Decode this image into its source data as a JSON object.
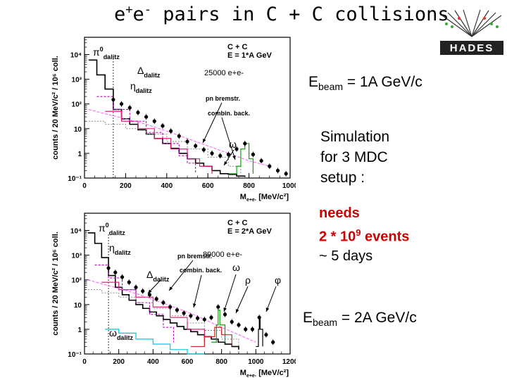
{
  "title": {
    "part1": "e",
    "sup1": "+",
    "part2": "e",
    "sup2": "-",
    "part3": " pairs in C + C collisions"
  },
  "logo": {
    "text": "HADES"
  },
  "right_panel": {
    "ebeam1": {
      "prefix": "E",
      "sub": "beam",
      "value": " = 1A GeV/c"
    },
    "simulation": [
      "Simulation",
      "for 3 MDC",
      "setup :"
    ],
    "needs": {
      "line1": "needs",
      "line2_prefix": "2 * 10",
      "line2_exp": "9",
      "line2_suffix": " events",
      "line3": "~ 5 days"
    },
    "ebeam2": {
      "prefix": "E",
      "sub": "beam",
      "value": " = 2A GeV/c"
    }
  },
  "colors": {
    "data_points": "#000000",
    "pi0_dalitz": "#000000",
    "delta_dalitz": "#e0207a",
    "eta_dalitz": "#c000c0",
    "pn_bremstr": "#ff66ff",
    "combin_back": "#888888",
    "omega": "#00aa00",
    "rho": "#cc2222",
    "phi": "#000000",
    "cyan": "#00c8e0",
    "red_text": "#cc0000"
  },
  "chart_data": [
    {
      "type": "line",
      "scale": "log-y",
      "xlabel": "M",
      "xlabel_sub": "e+e-",
      "xlabel_unit": "[MeV/c²]",
      "ylabel": "counts / 20 MeV/c² / 10⁶ coll.",
      "xlim": [
        0,
        1000
      ],
      "ylim": [
        0.1,
        50000
      ],
      "xticks": [
        "0",
        "200",
        "400",
        "600",
        "800",
        "1000"
      ],
      "yticks": [
        "10⁻¹",
        "1",
        "10",
        "10²",
        "10³",
        "10⁴"
      ],
      "info_lines": [
        "C + C",
        "E = 1*A GeV"
      ],
      "stat_label": "25000 e+e-",
      "annotations": [
        "π⁰dalitz",
        "Δdalitz",
        "ηdalitz",
        "pn bremstr.",
        "combin. back.",
        "ω"
      ],
      "series": [
        {
          "x": [
            20,
            60,
            100,
            140,
            180,
            220,
            260,
            300,
            340,
            380,
            420,
            460,
            500,
            540,
            580,
            620,
            660,
            700,
            740,
            780
          ],
          "y": [
            6000,
            1500,
            400,
            60,
            25,
            15,
            9,
            6,
            4,
            2.5,
            1.6,
            1.0,
            0.6,
            0.4,
            0.3,
            0.2,
            0.15,
            0.14,
            0.12,
            0.11
          ]
        },
        {
          "x": [
            100,
            180,
            260,
            340,
            420,
            500,
            560,
            620
          ],
          "y": [
            50,
            20,
            10,
            4,
            1.5,
            0.6,
            0.3,
            0.15
          ]
        },
        {
          "x": [
            60,
            140,
            220,
            300,
            380,
            460,
            500,
            540
          ],
          "y": [
            200,
            60,
            20,
            7,
            2.5,
            0.8,
            0.4,
            0.15
          ]
        },
        {
          "x": [
            20,
            100,
            200,
            300,
            400,
            500,
            600,
            700,
            800,
            900
          ],
          "y": [
            60,
            40,
            25,
            15,
            8,
            4,
            2,
            1,
            0.5,
            0.3
          ]
        },
        {
          "x": [
            20,
            100,
            200,
            300,
            400,
            500,
            600,
            700,
            760
          ],
          "y": [
            20,
            15,
            10,
            6,
            3,
            1.5,
            0.7,
            0.3,
            0.15
          ]
        },
        {
          "x": [
            700,
            740,
            760,
            780,
            800,
            820
          ],
          "y": [
            0.15,
            0.3,
            1.5,
            2.5,
            0.6,
            0.15
          ]
        },
        {
          "x": [
            140,
            180,
            220,
            260,
            300,
            340,
            380,
            420,
            460,
            500,
            540,
            580,
            620,
            660,
            700,
            740,
            780,
            820,
            860,
            900,
            940,
            980
          ],
          "y": [
            150,
            100,
            70,
            45,
            30,
            20,
            13,
            8,
            5,
            3,
            2,
            1.4,
            1.0,
            0.8,
            0.9,
            1.5,
            2.5,
            0.9,
            0.5,
            0.3,
            0.2,
            0.15
          ]
        }
      ]
    },
    {
      "type": "line",
      "scale": "log-y",
      "xlabel": "M",
      "xlabel_sub": "e+e-",
      "xlabel_unit": "[MeV/c²]",
      "ylabel": "counts / 20 MeV/c² / 10⁶ coll.",
      "xlim": [
        0,
        1200
      ],
      "ylim": [
        0.1,
        50000
      ],
      "xticks": [
        "0",
        "200",
        "400",
        "600",
        "800",
        "1000",
        "1200"
      ],
      "yticks": [
        "10⁻¹",
        "1",
        "10",
        "10²",
        "10³",
        "10⁴"
      ],
      "info_lines": [
        "C + C",
        "E = 2*A GeV"
      ],
      "stat_label": "89000 e+e-",
      "annotations": [
        "π⁰dalitz",
        "ηdalitz",
        "pn bremstr.",
        "combin. back.",
        "Δdalitz",
        "ω",
        "ρ",
        "φ",
        "ωdalitz"
      ],
      "series": [
        {
          "x": [
            20,
            60,
            100,
            140,
            180,
            220,
            260,
            300,
            340,
            380,
            420,
            460,
            500,
            540,
            580,
            620,
            660,
            700,
            740,
            780,
            820,
            860,
            900
          ],
          "y": [
            8000,
            3000,
            800,
            150,
            50,
            25,
            15,
            10,
            7,
            5,
            3.5,
            2.5,
            1.8,
            1.3,
            1.0,
            0.8,
            0.6,
            0.5,
            0.4,
            0.3,
            0.25,
            0.2,
            0.15
          ]
        },
        {
          "x": [
            100,
            200,
            300,
            400,
            500,
            600,
            700
          ],
          "y": [
            80,
            40,
            20,
            8,
            3,
            1,
            0.3
          ]
        },
        {
          "x": [
            60,
            140,
            220,
            300,
            380,
            460,
            520
          ],
          "y": [
            400,
            120,
            40,
            12,
            4,
            1.2,
            0.3
          ]
        },
        {
          "x": [
            20,
            100,
            200,
            300,
            400,
            500,
            600,
            700,
            800,
            900,
            1000
          ],
          "y": [
            100,
            70,
            45,
            28,
            16,
            9,
            5,
            2.5,
            1.2,
            0.6,
            0.3
          ]
        },
        {
          "x": [
            20,
            100,
            200,
            300,
            400,
            500,
            600,
            700,
            800,
            900
          ],
          "y": [
            40,
            30,
            20,
            12,
            7,
            3.5,
            1.8,
            0.9,
            0.4,
            0.2
          ]
        },
        {
          "x": [
            740,
            770,
            780,
            790,
            820
          ],
          "y": [
            0.3,
            1.5,
            6,
            1.5,
            0.3
          ]
        },
        {
          "x": [
            620,
            700,
            760,
            800,
            860
          ],
          "y": [
            0.2,
            0.5,
            1.2,
            0.6,
            0.2
          ]
        },
        {
          "x": [
            1000,
            1015,
            1020,
            1025,
            1040
          ],
          "y": [
            0.2,
            1.0,
            3,
            1.0,
            0.2
          ]
        },
        {
          "x": [
            120,
            200,
            300,
            400,
            500,
            600,
            700
          ],
          "y": [
            1.0,
            0.7,
            0.4,
            0.25,
            0.15,
            0.1,
            0.1
          ]
        },
        {
          "x": [
            140,
            180,
            220,
            260,
            300,
            340,
            380,
            420,
            460,
            500,
            540,
            580,
            620,
            660,
            700,
            740,
            780,
            820,
            860,
            900,
            940,
            980,
            1020,
            1060,
            1100
          ],
          "y": [
            300,
            200,
            130,
            80,
            50,
            35,
            25,
            17,
            12,
            8,
            6,
            4.5,
            3.5,
            2.8,
            2.5,
            3,
            8,
            4,
            2,
            1.5,
            1.0,
            1.0,
            3,
            0.6,
            0.3
          ]
        }
      ]
    }
  ]
}
